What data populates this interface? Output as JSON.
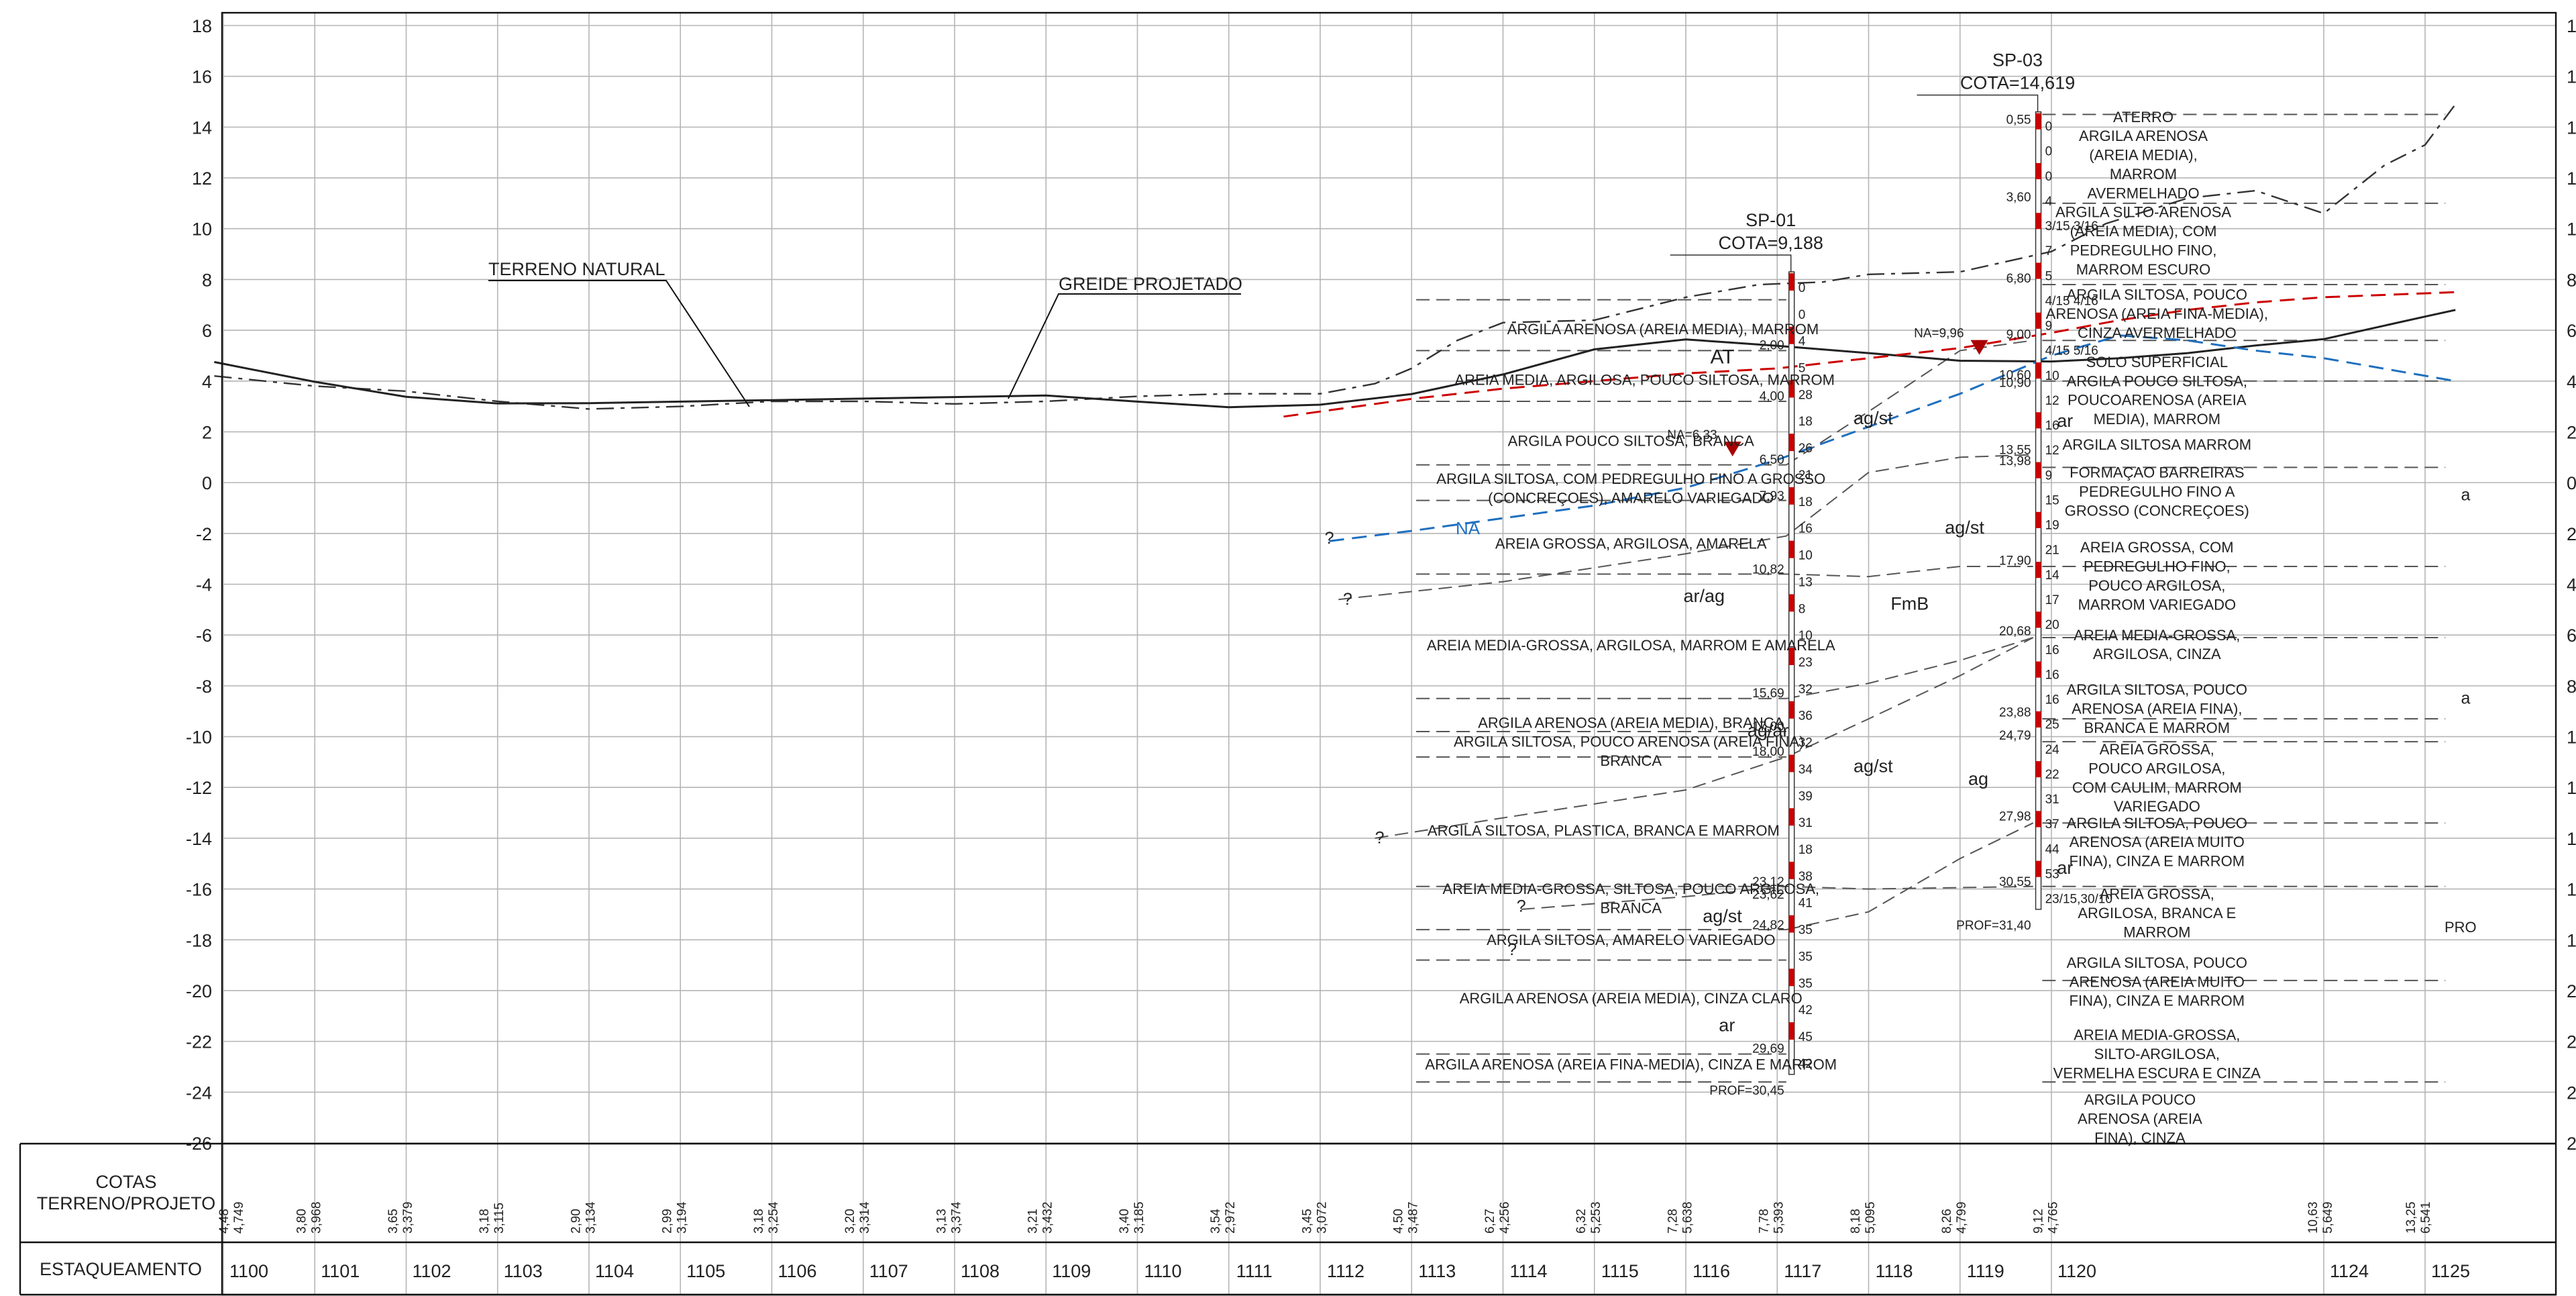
{
  "colors": {
    "red_layer": "#cc0000",
    "na_line": "#1f6fbf",
    "terrain": "#222222",
    "grid": "#b5b5b5"
  },
  "chart_data": {
    "type": "geotechnical-profile",
    "y_axis": {
      "min": -26,
      "max": 18,
      "step": 2
    },
    "terrain_label": "TERRENO NATURAL",
    "greide_label": "GREIDE PROJETADO",
    "na_label": "NA",
    "row_labels": {
      "cotas": "COTAS\nTERRENO/PROJETO",
      "estaqueamento": "ESTAQUEAMENTO"
    },
    "stations": [
      "1100",
      "1101",
      "1102",
      "1103",
      "1104",
      "1105",
      "1106",
      "1107",
      "1108",
      "1109",
      "1110",
      "1111",
      "1112",
      "1113",
      "1114",
      "1115",
      "1116",
      "1117",
      "1118",
      "1119",
      "1120",
      "1124",
      "1125"
    ],
    "station_x": [
      1100,
      1101,
      1102,
      1103,
      1104,
      1105,
      1106,
      1107,
      1108,
      1109,
      1110,
      1111,
      1112,
      1113,
      1114,
      1115,
      1116,
      1117,
      1118,
      1119,
      1120,
      1124,
      1125
    ],
    "cotas": [
      {
        "x": 1100.05,
        "t": "4,48",
        "p": "4,749"
      },
      {
        "x": 1100.9,
        "t": "3,80",
        "p": "3,968"
      },
      {
        "x": 1101.9,
        "t": "3,65",
        "p": "3,379"
      },
      {
        "x": 1102.9,
        "t": "3,18",
        "p": "3,115"
      },
      {
        "x": 1103.9,
        "t": "2,90",
        "p": "3,134"
      },
      {
        "x": 1104.9,
        "t": "2,99",
        "p": "3,194"
      },
      {
        "x": 1105.9,
        "t": "3,18",
        "p": "3,254"
      },
      {
        "x": 1106.9,
        "t": "3,20",
        "p": "3,314"
      },
      {
        "x": 1107.9,
        "t": "3,13",
        "p": "3,374"
      },
      {
        "x": 1108.9,
        "t": "3,21",
        "p": "3,432"
      },
      {
        "x": 1109.9,
        "t": "3,40",
        "p": "3,185"
      },
      {
        "x": 1110.9,
        "t": "3,54",
        "p": "2,972"
      },
      {
        "x": 1111.9,
        "t": "3,45",
        "p": "3,072"
      },
      {
        "x": 1112.9,
        "t": "4,50",
        "p": "3,487"
      },
      {
        "x": 1113.9,
        "t": "6,27",
        "p": "4,256"
      },
      {
        "x": 1114.9,
        "t": "6,32",
        "p": "5,253"
      },
      {
        "x": 1115.9,
        "t": "7,28",
        "p": "5,638"
      },
      {
        "x": 1116.9,
        "t": "7,78",
        "p": "5,393"
      },
      {
        "x": 1117.9,
        "t": "8,18",
        "p": "5,095"
      },
      {
        "x": 1118.9,
        "t": "8,26",
        "p": "4,799"
      },
      {
        "x": 1119.9,
        "t": "9,12",
        "p": "4,765"
      },
      {
        "x": 1123.9,
        "t": "10,63",
        "p": "5,649"
      },
      {
        "x": 1124.9,
        "t": "13,25",
        "p": "6,541"
      }
    ],
    "terrain_line": [
      [
        1099.9,
        4.2
      ],
      [
        1101,
        3.8
      ],
      [
        1102,
        3.6
      ],
      [
        1103,
        3.2
      ],
      [
        1104,
        2.9
      ],
      [
        1105,
        3.0
      ],
      [
        1106,
        3.2
      ],
      [
        1107,
        3.2
      ],
      [
        1108,
        3.1
      ],
      [
        1109,
        3.2
      ],
      [
        1110,
        3.4
      ],
      [
        1111,
        3.5
      ],
      [
        1112,
        3.5
      ],
      [
        1112.6,
        3.9
      ],
      [
        1113,
        4.5
      ],
      [
        1113.5,
        5.6
      ],
      [
        1114,
        6.3
      ],
      [
        1115,
        6.4
      ],
      [
        1116,
        7.3
      ],
      [
        1116.8,
        7.8
      ],
      [
        1117.5,
        7.9
      ],
      [
        1118,
        8.2
      ],
      [
        1119,
        8.3
      ],
      [
        1120,
        9.1
      ],
      [
        1120.8,
        10.2
      ],
      [
        1122,
        11.2
      ],
      [
        1123,
        11.5
      ],
      [
        1124,
        10.6
      ],
      [
        1124.6,
        12.5
      ],
      [
        1125,
        13.3
      ],
      [
        1125.3,
        14.9
      ]
    ],
    "greide_line": [
      [
        1099.9,
        4.75
      ],
      [
        1101,
        3.97
      ],
      [
        1102,
        3.38
      ],
      [
        1103,
        3.12
      ],
      [
        1104,
        3.13
      ],
      [
        1105,
        3.19
      ],
      [
        1106,
        3.25
      ],
      [
        1107,
        3.31
      ],
      [
        1108,
        3.37
      ],
      [
        1109,
        3.43
      ],
      [
        1110,
        3.19
      ],
      [
        1111,
        2.97
      ],
      [
        1112,
        3.07
      ],
      [
        1113,
        3.49
      ],
      [
        1114,
        4.26
      ],
      [
        1115,
        5.25
      ],
      [
        1116,
        5.64
      ],
      [
        1117,
        5.39
      ],
      [
        1118,
        5.1
      ],
      [
        1119,
        4.8
      ],
      [
        1120,
        4.77
      ],
      [
        1121,
        4.9
      ],
      [
        1122,
        5.1
      ],
      [
        1123,
        5.4
      ],
      [
        1124,
        5.65
      ],
      [
        1125,
        6.54
      ],
      [
        1125.3,
        6.8
      ]
    ],
    "red_line": [
      [
        1111.6,
        2.6
      ],
      [
        1112,
        2.8
      ],
      [
        1113,
        3.3
      ],
      [
        1114,
        3.7
      ],
      [
        1115,
        4.0
      ],
      [
        1116,
        4.3
      ],
      [
        1117,
        4.5
      ],
      [
        1118,
        4.9
      ],
      [
        1119,
        5.3
      ],
      [
        1120,
        5.9
      ],
      [
        1121,
        6.4
      ],
      [
        1122,
        6.8
      ],
      [
        1123,
        7.1
      ],
      [
        1124,
        7.3
      ],
      [
        1125.3,
        7.5
      ]
    ],
    "na_line": [
      [
        1112.1,
        -2.3
      ],
      [
        1113,
        -1.9
      ],
      [
        1114,
        -1.4
      ],
      [
        1115,
        -0.9
      ],
      [
        1116,
        -0.2
      ],
      [
        1117,
        0.9
      ],
      [
        1118,
        2.2
      ],
      [
        1119,
        3.5
      ],
      [
        1120,
        5.0
      ],
      [
        1121,
        5.8
      ],
      [
        1122,
        5.6
      ],
      [
        1123,
        5.2
      ],
      [
        1124,
        4.9
      ],
      [
        1125.3,
        4.0
      ]
    ],
    "boreholes": [
      {
        "id": "SP-01",
        "x": 1117.15,
        "cota": "COTA=9,188",
        "prof": "PROF=30,45",
        "na": "NA=6,33",
        "spt": [
          "0",
          "0",
          "4",
          "5",
          "28",
          "18",
          "26",
          "21",
          "18",
          "16",
          "10",
          "13",
          "8",
          "10",
          "23",
          "32",
          "36",
          "32",
          "34",
          "39",
          "31",
          "18",
          "38",
          "41",
          "35",
          "35",
          "35",
          "42",
          "45",
          "42"
        ],
        "depths": [
          {
            "t": "2,00",
            "y": 5.19
          },
          {
            "t": "4,00",
            "y": 3.19
          },
          {
            "t": "6,50",
            "y": 0.69
          },
          {
            "t": "7,93",
            "y": -0.74
          },
          {
            "t": "10,82",
            "y": -3.63
          },
          {
            "t": "15,69",
            "y": -8.5
          },
          {
            "t": "17,00",
            "y": -9.81
          },
          {
            "t": "18,00",
            "y": -10.81
          },
          {
            "t": "23,12",
            "y": -15.93
          },
          {
            "t": "23,62",
            "y": -16.43
          },
          {
            "t": "24,82",
            "y": -17.63
          },
          {
            "t": "29,69",
            "y": -22.5
          }
        ]
      },
      {
        "id": "SP-03",
        "x": 1119.85,
        "cota": "COTA=14,619",
        "prof": "PROF=31,40",
        "na": "NA=9,96",
        "spt": [
          "0",
          "0",
          "0",
          "4",
          "3/15 3/16",
          "7",
          "5",
          "4/15 4/16",
          "9",
          "4/15 5/16",
          "10",
          "12",
          "16",
          "12",
          "9",
          "15",
          "19",
          "21",
          "14",
          "17",
          "20",
          "16",
          "16",
          "16",
          "25",
          "24",
          "22",
          "31",
          "37",
          "44",
          "53",
          "23/15,30/10"
        ],
        "depths": [
          {
            "t": "0,55",
            "y": 14.07
          },
          {
            "t": "3,60",
            "y": 11.02
          },
          {
            "t": "6,80",
            "y": 7.82
          },
          {
            "t": "9,00",
            "y": 5.62
          },
          {
            "t": "10,60",
            "y": 4.02
          },
          {
            "t": "10,90",
            "y": 3.72
          },
          {
            "t": "13,55",
            "y": 1.07
          },
          {
            "t": "13,98",
            "y": 0.64
          },
          {
            "t": "17,90",
            "y": -3.28
          },
          {
            "t": "20,68",
            "y": -6.06
          },
          {
            "t": "23,88",
            "y": -9.26
          },
          {
            "t": "24,79",
            "y": -10.17
          },
          {
            "t": "27,98",
            "y": -13.36
          },
          {
            "t": "30,55",
            "y": -15.93
          }
        ]
      }
    ],
    "layers_sp01": [
      {
        "text": "ARGILA ARENOSA (AREIA MEDIA), MARROM",
        "x": 1115.75,
        "y": 5.85
      },
      {
        "text": "AREIA MEDIA, ARGILOSA, POUCO SILTOSA, MARROM",
        "x": 1115.55,
        "y": 3.85
      },
      {
        "text": "ARGILA POUCO SILTOSA, BRANCA",
        "x": 1115.4,
        "y": 1.45
      },
      {
        "text": "ARGILA SILTOSA, COM PEDREGULHO FINO A GROSSO",
        "x": 1115.4,
        "y": -0.05
      },
      {
        "text": "(CONCREÇOES), AMARELO VARIEGADO",
        "x": 1115.4,
        "y": -0.8
      },
      {
        "text": "AREIA GROSSA, ARGILOSA, AMARELA",
        "x": 1115.4,
        "y": -2.6
      },
      {
        "text": "AREIA MEDIA-GROSSA, ARGILOSA, MARROM E AMARELA",
        "x": 1115.4,
        "y": -6.6
      },
      {
        "text": "ARGILA ARENOSA (AREIA MEDIA), BRANCA",
        "x": 1115.4,
        "y": -9.65
      },
      {
        "text": "ARGILA SILTOSA, POUCO ARENOSA (AREIA FINA),",
        "x": 1115.4,
        "y": -10.4
      },
      {
        "text": "BRANCA",
        "x": 1115.4,
        "y": -11.15
      },
      {
        "text": "ARGILA SILTOSA, PLASTICA, BRANCA E MARROM",
        "x": 1115.1,
        "y": -13.9
      },
      {
        "text": "AREIA MEDIA-GROSSA, SILTOSA, POUCO ARGILOSA,",
        "x": 1115.4,
        "y": -16.2
      },
      {
        "text": "BRANCA",
        "x": 1115.4,
        "y": -16.95
      },
      {
        "text": "ARGILA SILTOSA, AMARELO VARIEGADO",
        "x": 1115.4,
        "y": -18.2
      },
      {
        "text": "ARGILA ARENOSA (AREIA MEDIA), CINZA CLARO",
        "x": 1115.4,
        "y": -20.5
      },
      {
        "text": "ARGILA ARENOSA (AREIA FINA-MEDIA), CINZA E MARROM",
        "x": 1115.4,
        "y": -23.1
      }
    ],
    "layers_sp03": [
      {
        "text": "ATERRO",
        "x": 1121.35,
        "y": 14.2
      },
      {
        "text": "ARGILA ARENOSA",
        "x": 1121.35,
        "y": 13.45
      },
      {
        "text": "(AREIA MEDIA),",
        "x": 1121.35,
        "y": 12.7
      },
      {
        "text": "MARROM",
        "x": 1121.35,
        "y": 11.95
      },
      {
        "text": "AVERMELHADO",
        "x": 1121.35,
        "y": 11.2
      },
      {
        "text": "ARGILA SILTO-ARENOSA",
        "x": 1121.35,
        "y": 10.45
      },
      {
        "text": "(AREIA MEDIA), COM",
        "x": 1121.35,
        "y": 9.7
      },
      {
        "text": "PEDREGULHO FINO,",
        "x": 1121.35,
        "y": 8.95
      },
      {
        "text": "MARROM ESCURO",
        "x": 1121.35,
        "y": 8.2
      },
      {
        "text": "ARGILA SILTOSA, POUCO",
        "x": 1121.55,
        "y": 7.2
      },
      {
        "text": "ARENOSA (AREIA FINA-MEDIA),",
        "x": 1121.55,
        "y": 6.45
      },
      {
        "text": "CINZA AVERMELHADO",
        "x": 1121.55,
        "y": 5.7
      },
      {
        "text": "SOLO SUPERFICIAL",
        "x": 1121.55,
        "y": 4.55
      },
      {
        "text": "ARGILA POUCO SILTOSA,",
        "x": 1121.55,
        "y": 3.8
      },
      {
        "text": "POUCOARENOSA (AREIA",
        "x": 1121.55,
        "y": 3.05
      },
      {
        "text": "MEDIA), MARROM",
        "x": 1121.55,
        "y": 2.3
      },
      {
        "text": "ARGILA SILTOSA MARROM",
        "x": 1121.55,
        "y": 1.3
      },
      {
        "text": "FORMAÇAO BARREIRAS",
        "x": 1121.55,
        "y": 0.2
      },
      {
        "text": "PEDREGULHO FINO A",
        "x": 1121.55,
        "y": -0.55
      },
      {
        "text": "GROSSO (CONCREÇOES)",
        "x": 1121.55,
        "y": -1.3
      },
      {
        "text": "AREIA GROSSA, COM",
        "x": 1121.55,
        "y": -2.75
      },
      {
        "text": "PEDREGULHO FINO,",
        "x": 1121.55,
        "y": -3.5
      },
      {
        "text": "POUCO ARGILOSA,",
        "x": 1121.55,
        "y": -4.25
      },
      {
        "text": "MARROM VARIEGADO",
        "x": 1121.55,
        "y": -5.0
      },
      {
        "text": "AREIA MEDIA-GROSSA,",
        "x": 1121.55,
        "y": -6.2
      },
      {
        "text": "ARGILOSA, CINZA",
        "x": 1121.55,
        "y": -6.95
      },
      {
        "text": "ARGILA SILTOSA, POUCO",
        "x": 1121.55,
        "y": -8.35
      },
      {
        "text": "ARENOSA (AREIA FINA),",
        "x": 1121.55,
        "y": -9.1
      },
      {
        "text": "BRANCA E MARROM",
        "x": 1121.55,
        "y": -9.85
      },
      {
        "text": "AREIA GROSSA,",
        "x": 1121.55,
        "y": -10.7
      },
      {
        "text": "POUCO ARGILOSA,",
        "x": 1121.55,
        "y": -11.45
      },
      {
        "text": "COM CAULIM, MARROM",
        "x": 1121.55,
        "y": -12.2
      },
      {
        "text": "VARIEGADO",
        "x": 1121.55,
        "y": -12.95
      },
      {
        "text": "ARGILA SILTOSA, POUCO",
        "x": 1121.55,
        "y": -13.6
      },
      {
        "text": "ARENOSA (AREIA MUITO",
        "x": 1121.55,
        "y": -14.35
      },
      {
        "text": "FINA), CINZA E MARROM",
        "x": 1121.55,
        "y": -15.1
      },
      {
        "text": "AREIA GROSSA,",
        "x": 1121.55,
        "y": -16.4
      },
      {
        "text": "ARGILOSA, BRANCA E",
        "x": 1121.55,
        "y": -17.15
      },
      {
        "text": "MARROM",
        "x": 1121.55,
        "y": -17.9
      },
      {
        "text": "ARGILA SILTOSA, POUCO",
        "x": 1121.55,
        "y": -19.1
      },
      {
        "text": "ARENOSA (AREIA MUITO",
        "x": 1121.55,
        "y": -19.85
      },
      {
        "text": "FINA), CINZA E MARROM",
        "x": 1121.55,
        "y": -20.6
      },
      {
        "text": "AREIA MEDIA-GROSSA,",
        "x": 1121.55,
        "y": -21.95
      },
      {
        "text": "SILTO-ARGILOSA,",
        "x": 1121.55,
        "y": -22.7
      },
      {
        "text": "VERMELHA ESCURA E CINZA",
        "x": 1121.55,
        "y": -23.45
      },
      {
        "text": "ARGILA POUCO",
        "x": 1121.3,
        "y": -24.5
      },
      {
        "text": "ARENOSA (AREIA",
        "x": 1121.3,
        "y": -25.25
      },
      {
        "text": "FINA), CINZA",
        "x": 1121.3,
        "y": -26.0
      }
    ],
    "unit_labels": [
      {
        "text": "AT",
        "x": 1116.4,
        "y": 4.7,
        "size": 30
      },
      {
        "text": "ag/st",
        "x": 1118.05,
        "y": 2.3,
        "size": 27
      },
      {
        "text": "ar/ag",
        "x": 1116.2,
        "y": -4.7,
        "size": 27
      },
      {
        "text": "FmB",
        "x": 1118.45,
        "y": -5.0,
        "size": 27
      },
      {
        "text": "ag/st",
        "x": 1119.05,
        "y": -2.0,
        "size": 27
      },
      {
        "text": "ag/ar",
        "x": 1116.9,
        "y": -10.0,
        "size": 27
      },
      {
        "text": "ag/st",
        "x": 1118.05,
        "y": -11.4,
        "size": 27
      },
      {
        "text": "ag",
        "x": 1119.2,
        "y": -11.9,
        "size": 27
      },
      {
        "text": "ar",
        "x": 1120.2,
        "y": 2.2,
        "size": 27
      },
      {
        "text": "ar",
        "x": 1120.2,
        "y": -15.4,
        "size": 27
      },
      {
        "text": "ag/st",
        "x": 1116.4,
        "y": -17.3,
        "size": 27
      },
      {
        "text": "ar",
        "x": 1116.45,
        "y": -21.6,
        "size": 27
      },
      {
        "text": "?",
        "x": 1112.3,
        "y": -4.8,
        "size": 25
      },
      {
        "text": "?",
        "x": 1112.65,
        "y": -14.2,
        "size": 25
      },
      {
        "text": "?",
        "x": 1114.2,
        "y": -16.9,
        "size": 25
      },
      {
        "text": "?",
        "x": 1114.1,
        "y": -18.6,
        "size": 25
      },
      {
        "text": "?",
        "x": 1112.1,
        "y": -2.4,
        "size": 25
      },
      {
        "text": "a",
        "x": 1125.4,
        "y": -0.7,
        "size": 25
      },
      {
        "text": "a",
        "x": 1125.4,
        "y": -8.7,
        "size": 25
      },
      {
        "text": "PRO",
        "x": 1125.35,
        "y": -17.7,
        "size": 22
      }
    ]
  }
}
